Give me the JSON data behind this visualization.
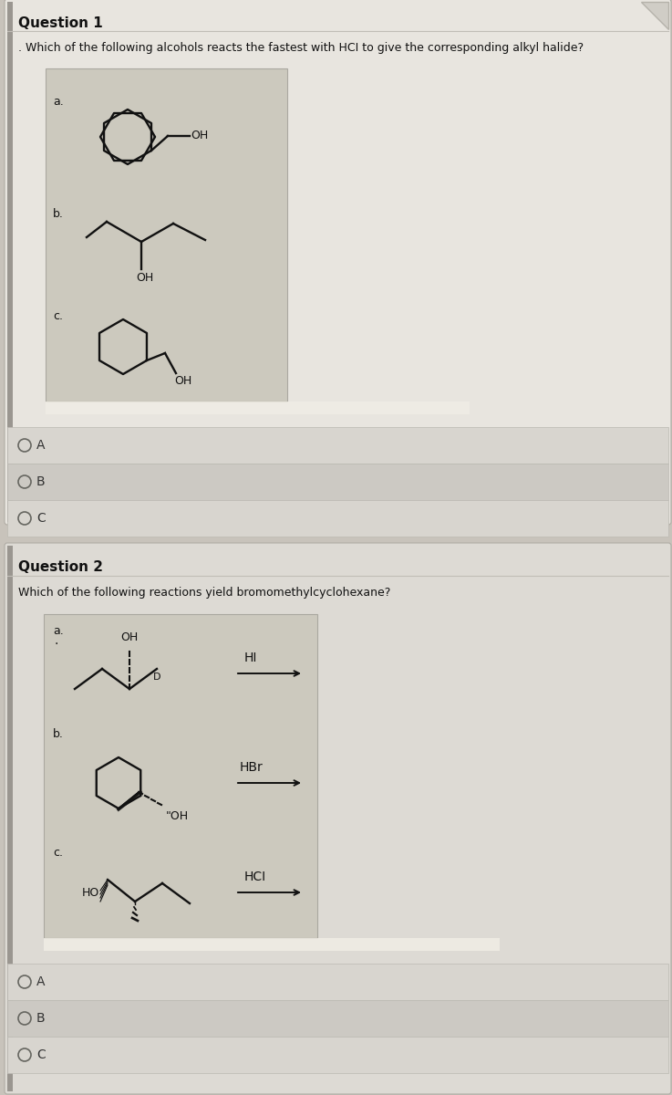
{
  "q1_title": "Question 1",
  "q1_question": ". Which of the following alcohols reacts the fastest with HCI to give the corresponding alkyl halide?",
  "q1_options": [
    "A",
    "B",
    "C"
  ],
  "q2_title": "Question 2",
  "q2_question": "Which of the following reactions yield bromomethylcyclohexane?",
  "q2_options": [
    "A",
    "B",
    "C"
  ],
  "outer_bg": "#c8c3bb",
  "q1_bg": "#e8e5df",
  "q2_bg": "#dddad4",
  "mol_panel_bg": "#ccc9be",
  "shine_color": "#f0ede5",
  "answer_row_colors": [
    "#d8d5cf",
    "#ccc9c3"
  ],
  "text_color": "#111111",
  "mol_color": "#111111",
  "title_color": "#111111"
}
